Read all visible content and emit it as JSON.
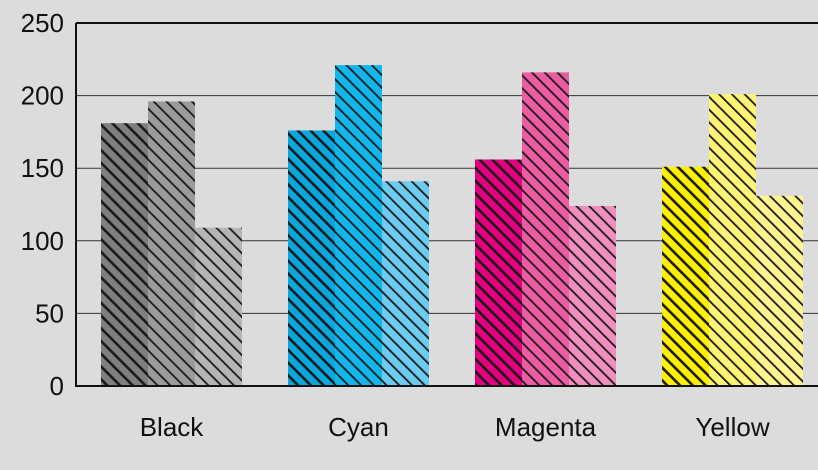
{
  "chart_data": {
    "type": "bar",
    "categories": [
      "Black",
      "Cyan",
      "Magenta",
      "Yellow"
    ],
    "series": [
      {
        "values": [
          181,
          176,
          156,
          151
        ]
      },
      {
        "values": [
          196,
          221,
          216,
          201
        ]
      },
      {
        "values": [
          109,
          141,
          124,
          131
        ]
      }
    ],
    "ylim": [
      0,
      250
    ],
    "yticks": [
      0,
      50,
      100,
      150,
      200,
      250
    ],
    "grid": true,
    "colors": {
      "Black": [
        "#7f7f7f",
        "#9b9b9b",
        "#b5b5b5"
      ],
      "Cyan": [
        "#0aa7df",
        "#13b6ea",
        "#6ccbf0"
      ],
      "Magenta": [
        "#e4007e",
        "#ec5ca3",
        "#f08fbf"
      ],
      "Yellow": [
        "#ffef00",
        "#fff375",
        "#fff48f"
      ]
    },
    "background": "#dcdcdc",
    "plot_background": "#dcdcdc",
    "axis_color": "#111111",
    "hatch_color": "#1a1a1a"
  }
}
